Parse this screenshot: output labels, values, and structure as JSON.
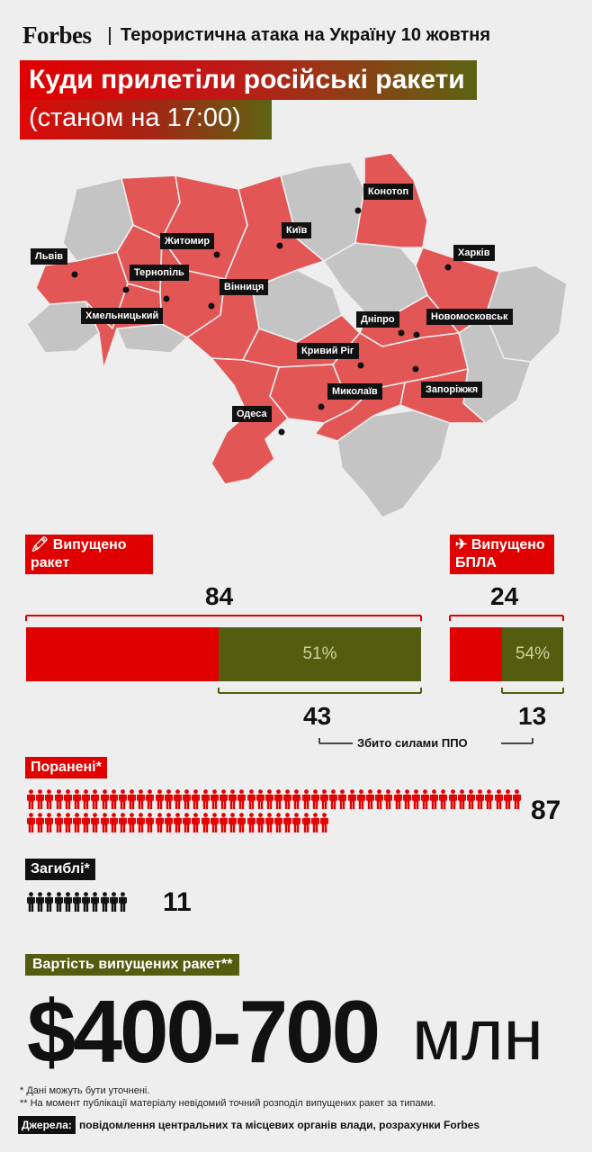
{
  "header": {
    "brand": "Forbes",
    "headline": "Терористична атака на Україну 10 жовтня"
  },
  "title": "Куди прилетіли російські ракети",
  "subtitle": "(станом на 17:00)",
  "colors": {
    "accent_red": "#e00000",
    "region_hit": "#e35656",
    "region_other": "#c4c4c4",
    "olive": "#545c10",
    "background": "#eeeeee"
  },
  "map": {
    "cities": [
      "Конотоп",
      "Київ",
      "Житомир",
      "Харків",
      "Львів",
      "Тернопіль",
      "Вінниця",
      "Хмельницький",
      "Дніпро",
      "Новомосковськ",
      "Кривий Ріг",
      "Миколаїв",
      "Запоріжжя",
      "Одеса"
    ]
  },
  "chart_data": [
    {
      "type": "bar",
      "title": "Випущено ракет",
      "total": 84,
      "intercepted": 43,
      "intercepted_label": "51%",
      "intercepted_share": 0.51
    },
    {
      "type": "bar",
      "title": "Випущено БПЛА",
      "total": 24,
      "intercepted": 13,
      "intercepted_label": "54%",
      "intercepted_share": 0.54
    }
  ],
  "intercept_caption": "Збито силами ППО",
  "wounded": {
    "label": "Поранені*",
    "count": 87
  },
  "dead": {
    "label": "Загиблі*",
    "count": 11
  },
  "cost": {
    "label": "Вартість випущених ракет**",
    "value": "$400-700",
    "unit": "млн"
  },
  "footnotes": [
    "* Дані можуть бути уточнені.",
    "** На момент публікації матеріалу невідомий точний розподіл випущених ракет за типами."
  ],
  "sources": {
    "label": "Джерела:",
    "text": "повідомлення центральних та місцевих органів влади, розрахунки Forbes"
  }
}
